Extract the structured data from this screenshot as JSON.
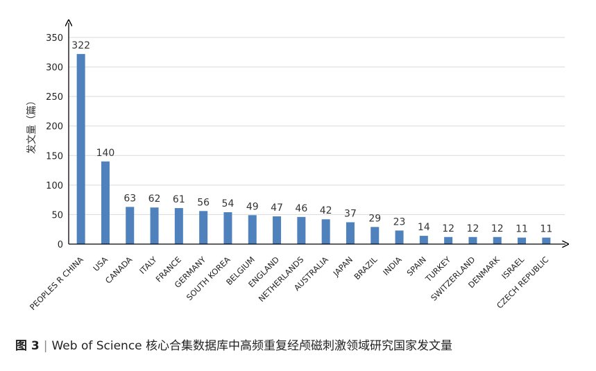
{
  "chart_data": {
    "type": "bar",
    "ylabel": "发文量（篇）",
    "ylim": [
      0,
      350
    ],
    "yticks": [
      0,
      50,
      100,
      150,
      200,
      250,
      300,
      350
    ],
    "grid": true,
    "bar_color": "#4f81bd",
    "categories": [
      "PEOPLES R CHINA",
      "USA",
      "CANADA",
      "ITALY",
      "FRANCE",
      "GERMANY",
      "SOUTH KOREA",
      "BELGIUM",
      "ENGLAND",
      "NETHERLANDS",
      "AUSTRALIA",
      "JAPAN",
      "BRAZIL",
      "INDIA",
      "SPAIN",
      "TURKEY",
      "SWITZERLAND",
      "DENMARK",
      "ISRAEL",
      "CZECH REPUBLIC"
    ],
    "values": [
      322,
      140,
      63,
      62,
      61,
      56,
      54,
      49,
      47,
      46,
      42,
      37,
      29,
      23,
      14,
      12,
      12,
      12,
      11,
      11
    ]
  },
  "caption": {
    "figure": "图 3",
    "separator": "|",
    "text": "Web of Science 核心合集数据库中高频重复经颅磁刺激领域研究国家发文量"
  }
}
